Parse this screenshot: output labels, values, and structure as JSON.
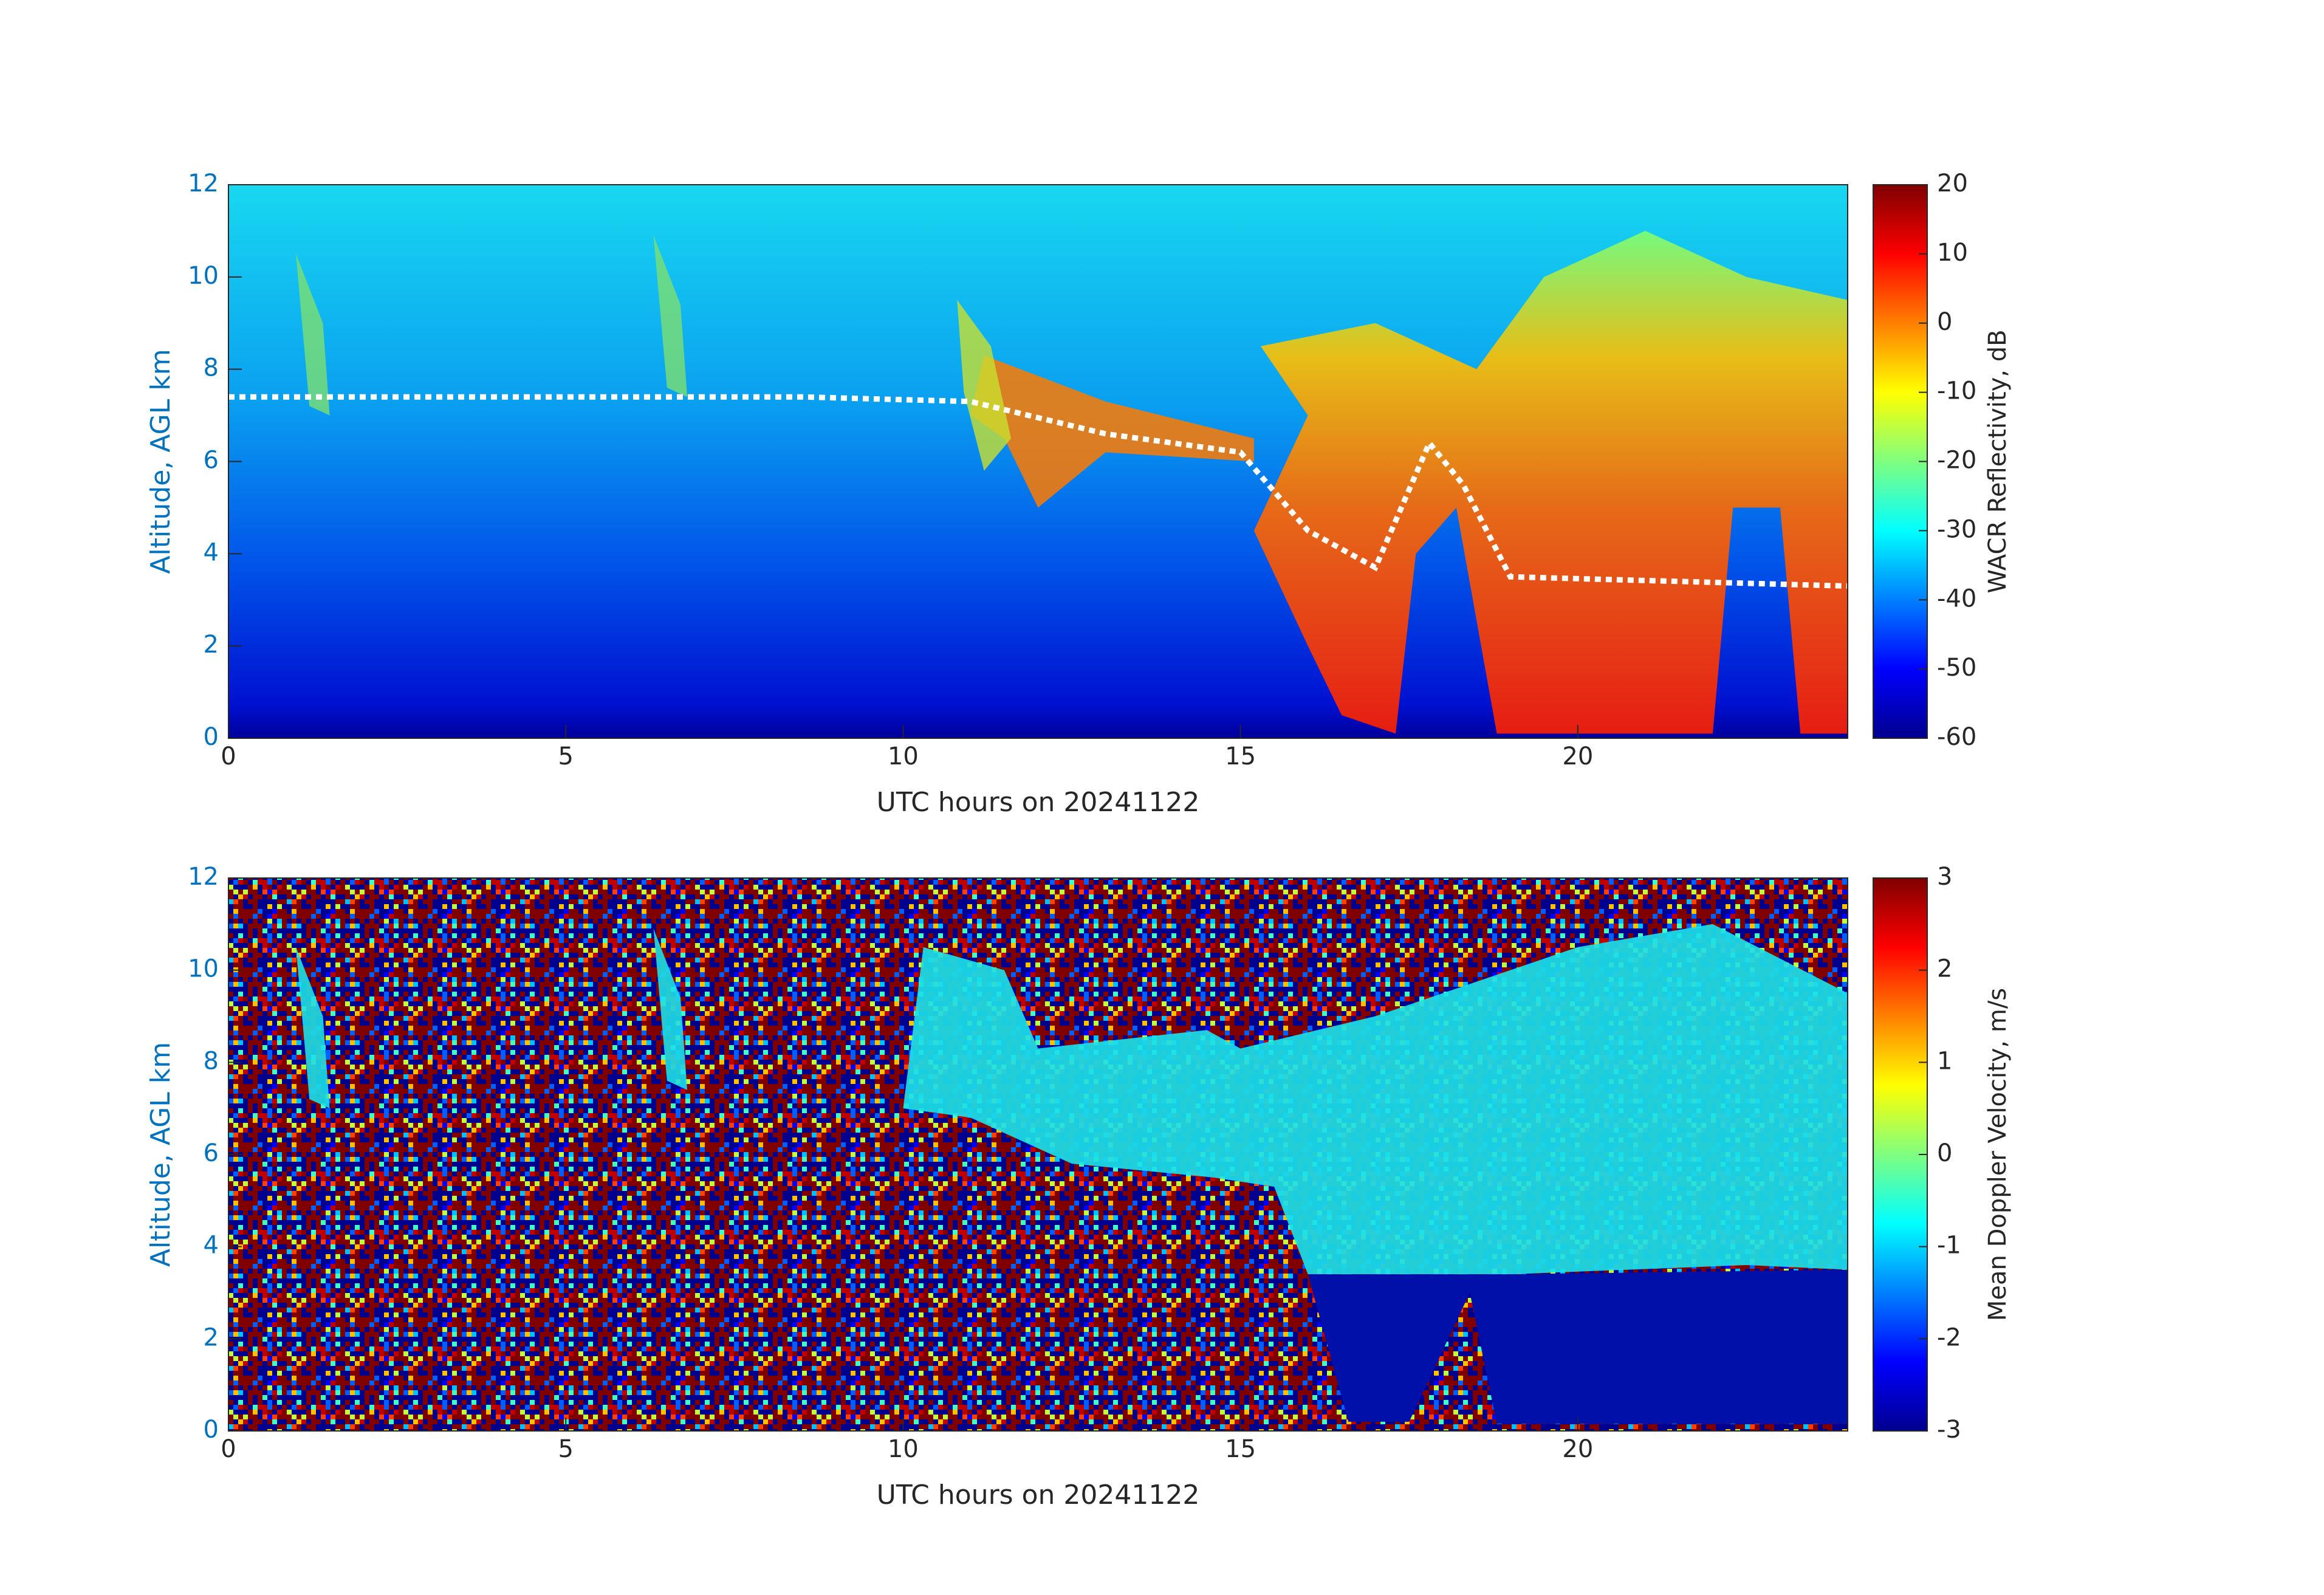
{
  "chart_data": [
    {
      "type": "heatmap",
      "x_label": "UTC hours on 20241122",
      "y_label": "Altitude, AGL km",
      "xlim": [
        0,
        24
      ],
      "xticks": [
        0,
        5,
        10,
        15,
        20
      ],
      "ylim": [
        0,
        12
      ],
      "yticks": [
        0,
        2,
        4,
        6,
        8,
        10,
        12
      ],
      "colormap": "jet",
      "colorbar_label": "WACR Reflectivity, dB",
      "clim": [
        -60,
        20
      ],
      "cticks": [
        -60,
        -50,
        -40,
        -30,
        -20,
        -10,
        0,
        10,
        20
      ]
    },
    {
      "type": "heatmap",
      "x_label": "UTC hours on 20241122",
      "y_label": "Altitude, AGL km",
      "xlim": [
        0,
        24
      ],
      "xticks": [
        0,
        5,
        10,
        15,
        20
      ],
      "ylim": [
        0,
        12
      ],
      "yticks": [
        0,
        2,
        4,
        6,
        8,
        10,
        12
      ],
      "colormap": "jet",
      "colorbar_label": "Mean Doppler Velocity, m/s",
      "clim": [
        -3,
        3
      ],
      "cticks": [
        -3,
        -2,
        -1,
        0,
        1,
        2,
        3
      ]
    }
  ]
}
